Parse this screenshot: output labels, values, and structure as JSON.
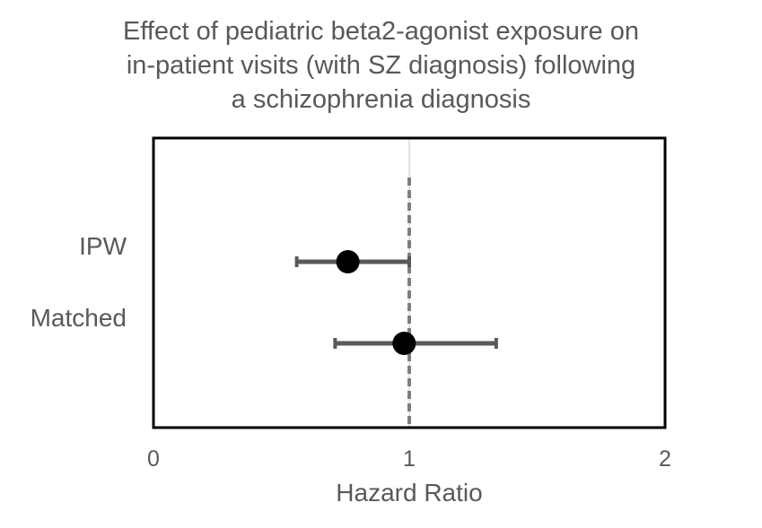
{
  "chart_data": {
    "type": "forest",
    "title_lines": [
      "Effect of pediatric beta2-agonist exposure on",
      "in-patient visits (with SZ diagnosis) following",
      "a schizophrenia diagnosis"
    ],
    "xlabel": "Hazard Ratio",
    "xlim": [
      0,
      2
    ],
    "xticks": [
      "0",
      "1",
      "2"
    ],
    "xtick_values": [
      0,
      1,
      2
    ],
    "reference_line": 1,
    "categories": [
      "IPW",
      "Matched"
    ],
    "series": [
      {
        "label": "IPW",
        "estimate": 0.76,
        "lower": 0.56,
        "upper": 1.0
      },
      {
        "label": "Matched",
        "estimate": 0.98,
        "lower": 0.71,
        "upper": 1.34
      }
    ],
    "colors": {
      "marker": "#000000",
      "whisker": "#595959",
      "reference": "#7f7f7f",
      "frame": "#000000"
    }
  }
}
